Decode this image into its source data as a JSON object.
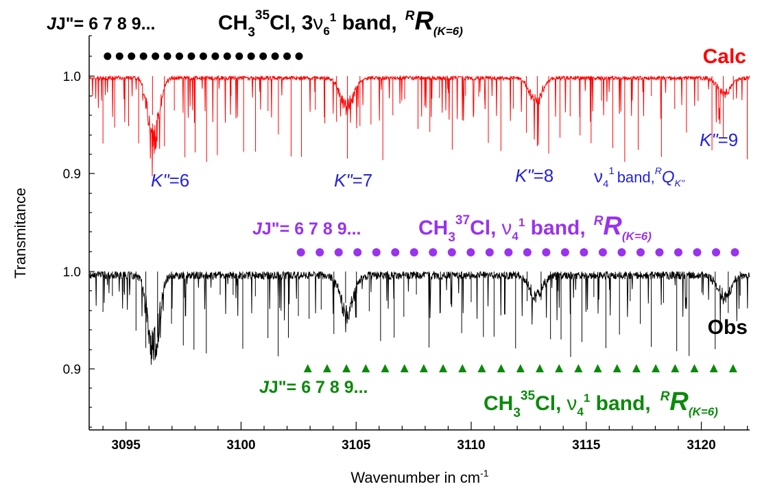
{
  "chart_data": {
    "type": "line",
    "xlabel": "Wavenumber in cm",
    "xlabel_sup": "-1",
    "ylabel": "Transmitance",
    "xlim": [
      3093.4,
      3122.1
    ],
    "x_ticks": [
      "3095",
      "3100",
      "3105",
      "3110",
      "3115",
      "3120"
    ],
    "y_ticks_calc": [
      "1.0",
      "0.9"
    ],
    "y_ticks_obs": [
      "1.0",
      "0.9"
    ],
    "series": [
      {
        "name": "Calc",
        "color": "#ff0000",
        "baseline": 1.0,
        "k_clusters": [
          {
            "k": "6",
            "center": 3096.2,
            "depth": 0.08
          },
          {
            "k": "7",
            "center": 3104.6,
            "depth": 0.04
          },
          {
            "k": "8",
            "center": 3112.8,
            "depth": 0.03
          },
          {
            "k": "9",
            "center": 3121.0,
            "depth": 0.02
          }
        ]
      },
      {
        "name": "Obs",
        "color": "#000000",
        "baseline": 1.0,
        "k_clusters": [
          {
            "k": "6",
            "center": 3096.2,
            "depth": 0.1
          },
          {
            "k": "7",
            "center": 3104.6,
            "depth": 0.05
          },
          {
            "k": "8",
            "center": 3112.8,
            "depth": 0.03
          },
          {
            "k": "9",
            "center": 3121.0,
            "depth": 0.03
          }
        ]
      }
    ],
    "markers": {
      "black_dots": {
        "start": 3094.2,
        "step": 0.52,
        "count": 17,
        "color": "#000000"
      },
      "purple_dots": {
        "start": 3102.6,
        "step": 0.82,
        "count": 24,
        "color": "#9933ee"
      },
      "green_triangles": {
        "start": 3102.9,
        "step": 0.84,
        "count": 23,
        "color": "#0a8a0a"
      }
    }
  },
  "labels": {
    "calc": "Calc",
    "obs": "Obs",
    "k6": "=6",
    "k7": "=7",
    "k8": "=8",
    "k9": "=9",
    "kprime": "K\"",
    "nu4_band": "band,",
    "top_j": "J\"= 6 7  8  9...",
    "top_title": "CH",
    "top_iso": "35",
    "top_sub3": "3",
    "top_cl": "Cl, 3",
    "top_nu": "ν",
    "top_nu_sub": "6",
    "top_nu_sup": "1",
    "top_band": " band,",
    "R": "R",
    "R_sup": "R",
    "R_sub": "(K=6)",
    "mid_j": "J\"= 6 7  8  9...",
    "mid_iso": "37",
    "mid_cl": "Cl,",
    "mid_nu_sub": "4",
    "mid_nu_sup": "1",
    "bot_j": "J\"= 6 7  8  9...",
    "bot_iso": "35",
    "bot_cl": "Cl,",
    "bot_nu_sub": "4",
    "bot_nu_sup": "1",
    "nu4_label_sub": "4",
    "nu4_label_sup": "1",
    "Q": "Q",
    "Q_sup": "R",
    "Q_sub": "K\""
  }
}
